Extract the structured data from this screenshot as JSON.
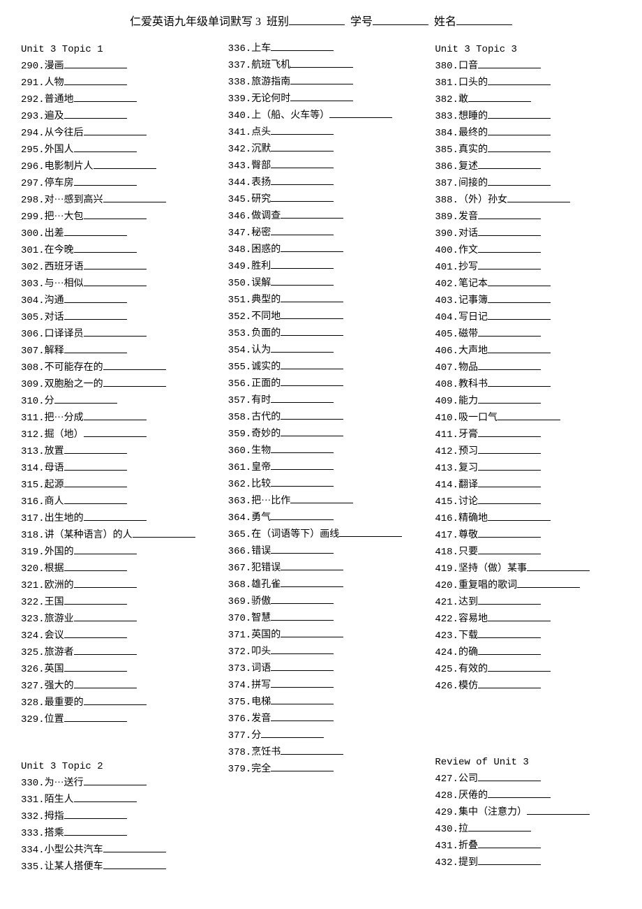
{
  "header": {
    "title": "仁爱英语九年级单词默写 3",
    "class_label": "班别",
    "number_label": "学号",
    "name_label": "姓名"
  },
  "columns": [
    {
      "groups": [
        {
          "title": "Unit 3  Topic 1",
          "items": [
            {
              "num": "290.",
              "text": "漫画"
            },
            {
              "num": "291.",
              "text": "人物"
            },
            {
              "num": "292.",
              "text": "普通地"
            },
            {
              "num": "293.",
              "text": "遍及"
            },
            {
              "num": "294.",
              "text": "从今往后"
            },
            {
              "num": "295.",
              "text": "外国人"
            },
            {
              "num": "296.",
              "text": "电影制片人"
            },
            {
              "num": "297.",
              "text": "停车房"
            },
            {
              "num": "298.",
              "text": "对···感到高兴"
            },
            {
              "num": "299.",
              "text": "把···大包"
            },
            {
              "num": "300.",
              "text": "出差"
            },
            {
              "num": "301.",
              "text": "在今晚"
            },
            {
              "num": "302.",
              "text": "西班牙语"
            },
            {
              "num": "303.",
              "text": "与···相似"
            },
            {
              "num": "304.",
              "text": "沟通"
            },
            {
              "num": "305.",
              "text": "对话"
            },
            {
              "num": "306.",
              "text": "口译译员"
            },
            {
              "num": "307.",
              "text": "解释"
            },
            {
              "num": "308.",
              "text": "不可能存在的"
            },
            {
              "num": "309.",
              "text": "双胞胎之一的"
            },
            {
              "num": "310.",
              "text": "分"
            },
            {
              "num": "311.",
              "text": "把···分成"
            },
            {
              "num": "312.",
              "text": "掘（地）"
            },
            {
              "num": "313.",
              "text": "放置"
            },
            {
              "num": "314.",
              "text": "母语"
            },
            {
              "num": "315.",
              "text": "起源"
            },
            {
              "num": "316.",
              "text": "商人"
            },
            {
              "num": "317.",
              "text": "出生地的"
            },
            {
              "num": "318.",
              "text": "讲（某种语言）的人"
            },
            {
              "num": "319.",
              "text": "外国的"
            },
            {
              "num": "320.",
              "text": "根据"
            },
            {
              "num": "321.",
              "text": "欧洲的"
            },
            {
              "num": "322.",
              "text": "王国"
            },
            {
              "num": "323.",
              "text": "旅游业"
            },
            {
              "num": "324.",
              "text": "会议"
            },
            {
              "num": "325.",
              "text": "旅游者"
            },
            {
              "num": "326.",
              "text": "英国"
            },
            {
              "num": "327.",
              "text": "强大的"
            },
            {
              "num": "328.",
              "text": "最重要的"
            },
            {
              "num": "329.",
              "text": "位置"
            }
          ]
        },
        {
          "spacer": true,
          "title": "Unit 3  Topic 2",
          "items": [
            {
              "num": "330.",
              "text": "为···送行"
            },
            {
              "num": "331.",
              "text": "陌生人"
            },
            {
              "num": "332.",
              "text": "拇指"
            },
            {
              "num": "333.",
              "text": "搭乘"
            },
            {
              "num": "334.",
              "text": "小型公共汽车"
            },
            {
              "num": "335.",
              "text": "让某人搭便车"
            }
          ]
        }
      ]
    },
    {
      "groups": [
        {
          "title": "",
          "items": [
            {
              "num": "336.",
              "text": "上车"
            },
            {
              "num": "337.",
              "text": "航班飞机"
            },
            {
              "num": "338.",
              "text": "旅游指南"
            },
            {
              "num": "339.",
              "text": "无论何时"
            },
            {
              "num": "340.",
              "text": "上（船、火车等）"
            },
            {
              "num": "341.",
              "text": "点头"
            },
            {
              "num": "342.",
              "text": "沉默"
            },
            {
              "num": "343.",
              "text": "臀部"
            },
            {
              "num": "344.",
              "text": "表扬"
            },
            {
              "num": "345.",
              "text": "研究"
            },
            {
              "num": "346.",
              "text": "做调查"
            },
            {
              "num": "347.",
              "text": "秘密"
            },
            {
              "num": "348.",
              "text": "困惑的"
            },
            {
              "num": "349.",
              "text": "胜利"
            },
            {
              "num": "350.",
              "text": "误解"
            },
            {
              "num": "351.",
              "text": "典型的"
            },
            {
              "num": "352.",
              "text": "不同地"
            },
            {
              "num": "353.",
              "text": "负面的"
            },
            {
              "num": "354.",
              "text": "认为"
            },
            {
              "num": "355.",
              "text": "诚实的"
            },
            {
              "num": "356.",
              "text": "正面的"
            },
            {
              "num": "357.",
              "text": "有时"
            },
            {
              "num": "358.",
              "text": "古代的"
            },
            {
              "num": "359.",
              "text": "奇妙的"
            },
            {
              "num": "360.",
              "text": "生物"
            },
            {
              "num": "361.",
              "text": "皇帝"
            },
            {
              "num": "362.",
              "text": "比较"
            },
            {
              "num": "363.",
              "text": "把···比作"
            },
            {
              "num": "364.",
              "text": "勇气"
            },
            {
              "num": "365.",
              "text": "在（词语等下）画线"
            },
            {
              "num": "366.",
              "text": "错误"
            },
            {
              "num": "367.",
              "text": "犯错误"
            },
            {
              "num": "368.",
              "text": " 雄孔雀"
            },
            {
              "num": "369.",
              "text": "骄傲"
            },
            {
              "num": "370.",
              "text": "智慧"
            },
            {
              "num": "371.",
              "text": "英国的"
            },
            {
              "num": "372.",
              "text": "叩头"
            },
            {
              "num": "373.",
              "text": "词语"
            },
            {
              "num": "374.",
              "text": "拼写"
            },
            {
              "num": "375.",
              "text": "电梯"
            },
            {
              "num": "376.",
              "text": "发音"
            },
            {
              "num": "377.",
              "text": "分"
            },
            {
              "num": "378.",
              "text": "烹饪书"
            },
            {
              "num": "379.",
              "text": "完全"
            }
          ]
        }
      ]
    },
    {
      "groups": [
        {
          "title": "Unit 3  Topic 3",
          "items": [
            {
              "num": "380.",
              "text": "口音"
            },
            {
              "num": "381.",
              "text": "口头的"
            },
            {
              "num": "382.",
              "text": "敢"
            },
            {
              "num": "383.",
              "text": "想睡的"
            },
            {
              "num": "384.",
              "text": "最终的"
            },
            {
              "num": "385.",
              "text": "真实的"
            },
            {
              "num": "386.",
              "text": "复述"
            },
            {
              "num": "387.",
              "text": "间接的"
            },
            {
              "num": "388.",
              "text": "（外）孙女"
            },
            {
              "num": "389.",
              "text": "发音"
            },
            {
              "num": "390.",
              "text": "对话"
            },
            {
              "num": "400.",
              "text": "作文"
            },
            {
              "num": "401.",
              "text": "抄写"
            },
            {
              "num": "402.",
              "text": "笔记本"
            },
            {
              "num": "403.",
              "text": "记事簿"
            },
            {
              "num": "404.",
              "text": "写日记"
            },
            {
              "num": "405.",
              "text": "磁带"
            },
            {
              "num": "406.",
              "text": "大声地"
            },
            {
              "num": "407.",
              "text": "物品"
            },
            {
              "num": "408.",
              "text": "教科书"
            },
            {
              "num": "409.",
              "text": "能力"
            },
            {
              "num": "410.",
              "text": "吸一口气"
            },
            {
              "num": "411.",
              "text": "牙膏"
            },
            {
              "num": "412.",
              "text": "预习"
            },
            {
              "num": "413.",
              "text": "复习"
            },
            {
              "num": "414.",
              "text": "翻译"
            },
            {
              "num": "415.",
              "text": "讨论"
            },
            {
              "num": "416.",
              "text": "精确地"
            },
            {
              "num": "417.",
              "text": "尊敬"
            },
            {
              "num": "418.",
              "text": "只要"
            },
            {
              "num": "419.",
              "text": "坚持（做）某事"
            },
            {
              "num": "420.",
              "text": "重复唱的歌词"
            },
            {
              "num": "421.",
              "text": "达到"
            },
            {
              "num": "422.",
              "text": "容易地"
            },
            {
              "num": "423.",
              "text": "下载"
            },
            {
              "num": "424.",
              "text": "的确"
            },
            {
              "num": "425.",
              "text": "有效的"
            },
            {
              "num": "426.",
              "text": "模仿"
            }
          ]
        },
        {
          "spacer": true,
          "spacer2": true,
          "title": "Review of Unit 3",
          "items": [
            {
              "num": "427.",
              "text": "公司"
            },
            {
              "num": "428.",
              "text": "厌倦的"
            },
            {
              "num": "429.",
              "text": "集中（注意力）"
            },
            {
              "num": "430.",
              "text": "拉"
            },
            {
              "num": "431.",
              "text": "折叠"
            },
            {
              "num": "432.",
              "text": "提到"
            }
          ]
        }
      ]
    }
  ],
  "style": {
    "background_color": "#ffffff",
    "text_color": "#000000",
    "font_family_cn": "SimSun",
    "font_family_num": "Courier New",
    "font_size_body": 14,
    "font_size_header": 16,
    "line_height": 1.5,
    "underline_min_width": 90
  }
}
